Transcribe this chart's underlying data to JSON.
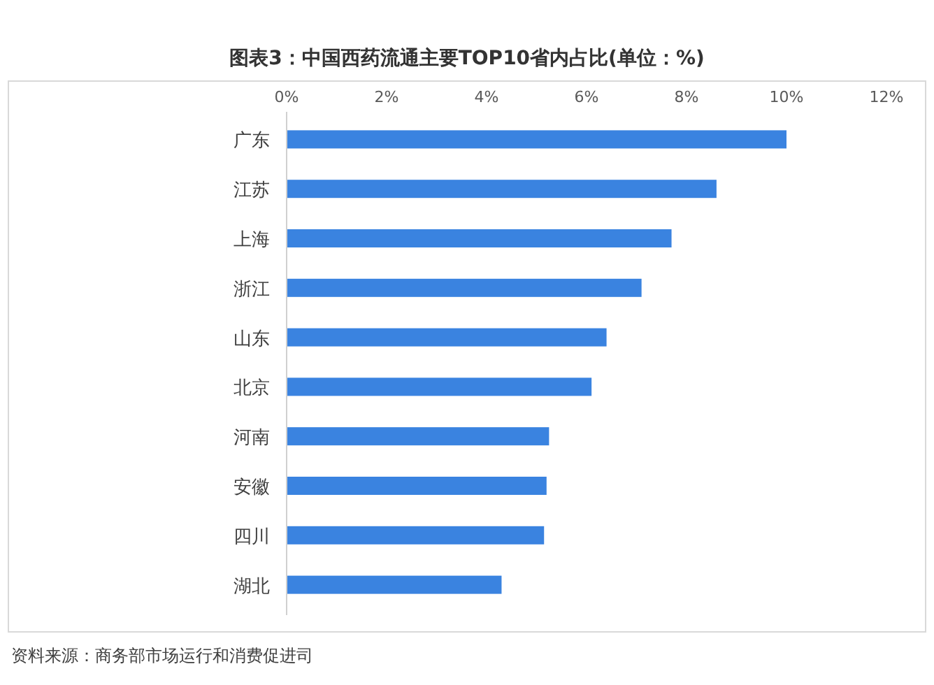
{
  "chart_data": {
    "type": "bar",
    "orientation": "horizontal",
    "title": "图表3：中国西药流通主要TOP10省内占比(单位：%)",
    "categories": [
      "广东",
      "江苏",
      "上海",
      "浙江",
      "山东",
      "北京",
      "河南",
      "安徽",
      "四川",
      "湖北"
    ],
    "values": [
      10.0,
      8.6,
      7.7,
      7.1,
      6.4,
      6.1,
      5.25,
      5.2,
      5.15,
      4.3
    ],
    "color": "#3a83e0",
    "xlim": [
      0,
      12
    ],
    "xticks": [
      {
        "value": 0,
        "label": "0%"
      },
      {
        "value": 2,
        "label": "2%"
      },
      {
        "value": 4,
        "label": "4%"
      },
      {
        "value": 6,
        "label": "6%"
      },
      {
        "value": 8,
        "label": "8%"
      },
      {
        "value": 10,
        "label": "10%"
      },
      {
        "value": 12,
        "label": "12%"
      }
    ],
    "grid": false,
    "annotations": [
      "资料来源：商务部市场运行和消费促进司"
    ]
  }
}
